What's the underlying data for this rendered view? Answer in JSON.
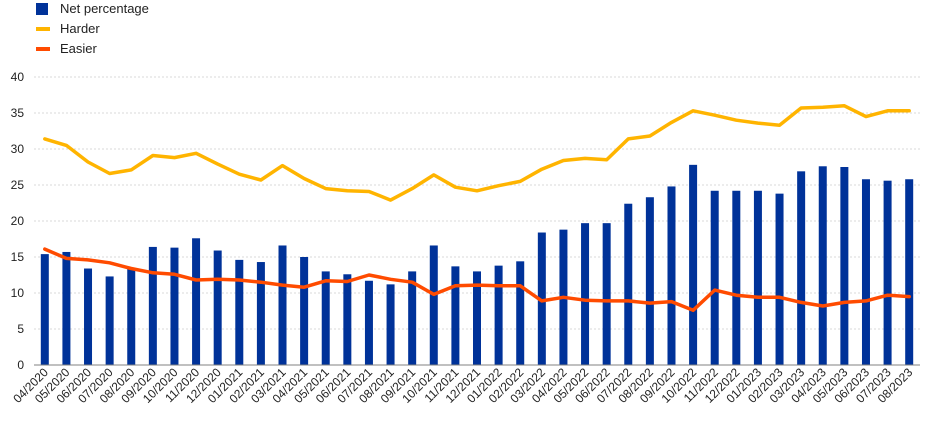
{
  "chart_data": {
    "type": "bar",
    "categories": [
      "04/2020",
      "05/2020",
      "06/2020",
      "07/2020",
      "08/2020",
      "09/2020",
      "10/2020",
      "11/2020",
      "12/2020",
      "01/2021",
      "02/2021",
      "03/2021",
      "04/2021",
      "05/2021",
      "06/2021",
      "07/2021",
      "08/2021",
      "09/2021",
      "10/2021",
      "11/2021",
      "12/2021",
      "01/2022",
      "02/2022",
      "03/2022",
      "04/2022",
      "05/2022",
      "06/2022",
      "07/2022",
      "08/2022",
      "09/2022",
      "10/2022",
      "11/2022",
      "12/2022",
      "01/2023",
      "02/2023",
      "03/2023",
      "04/2023",
      "05/2023",
      "06/2023",
      "07/2023",
      "08/2023"
    ],
    "series": [
      {
        "name": "Net percentage",
        "kind": "bar",
        "color": "#003299",
        "values": [
          15.4,
          15.7,
          13.4,
          12.3,
          13.5,
          16.4,
          16.3,
          17.6,
          15.9,
          14.6,
          14.3,
          16.6,
          15.0,
          13.0,
          12.6,
          11.7,
          11.2,
          13.0,
          16.6,
          13.7,
          13.0,
          13.8,
          14.4,
          18.4,
          18.8,
          19.7,
          19.7,
          22.4,
          23.3,
          24.8,
          27.8,
          24.2,
          24.2,
          24.2,
          23.8,
          26.9,
          27.6,
          27.5,
          25.8,
          25.6,
          25.8
        ]
      },
      {
        "name": "Harder",
        "kind": "line",
        "color": "#FFB400",
        "values": [
          31.4,
          30.5,
          28.2,
          26.6,
          27.1,
          29.1,
          28.8,
          29.4,
          27.9,
          26.5,
          25.7,
          27.7,
          25.9,
          24.5,
          24.2,
          24.1,
          22.9,
          24.5,
          26.4,
          24.7,
          24.2,
          24.9,
          25.5,
          27.2,
          28.4,
          28.7,
          28.5,
          31.4,
          31.8,
          33.7,
          35.3,
          34.7,
          34.0,
          33.6,
          33.3,
          35.7,
          35.8,
          36.0,
          34.5,
          35.3,
          35.3
        ]
      },
      {
        "name": "Easier",
        "kind": "line",
        "color": "#FF4B00",
        "values": [
          16.1,
          14.8,
          14.6,
          14.2,
          13.4,
          12.8,
          12.6,
          11.8,
          11.9,
          11.8,
          11.5,
          11.1,
          10.8,
          11.7,
          11.6,
          12.5,
          11.9,
          11.5,
          9.8,
          11.0,
          11.1,
          11.0,
          11.0,
          8.9,
          9.4,
          9.0,
          8.9,
          8.9,
          8.6,
          8.8,
          7.6,
          10.4,
          9.7,
          9.4,
          9.4,
          8.7,
          8.2,
          8.7,
          8.9,
          9.7,
          9.5
        ]
      }
    ],
    "ylim": [
      0,
      40
    ],
    "yticks": [
      0,
      5,
      10,
      15,
      20,
      25,
      30,
      35,
      40
    ],
    "grid": true,
    "legend": "top-left"
  }
}
